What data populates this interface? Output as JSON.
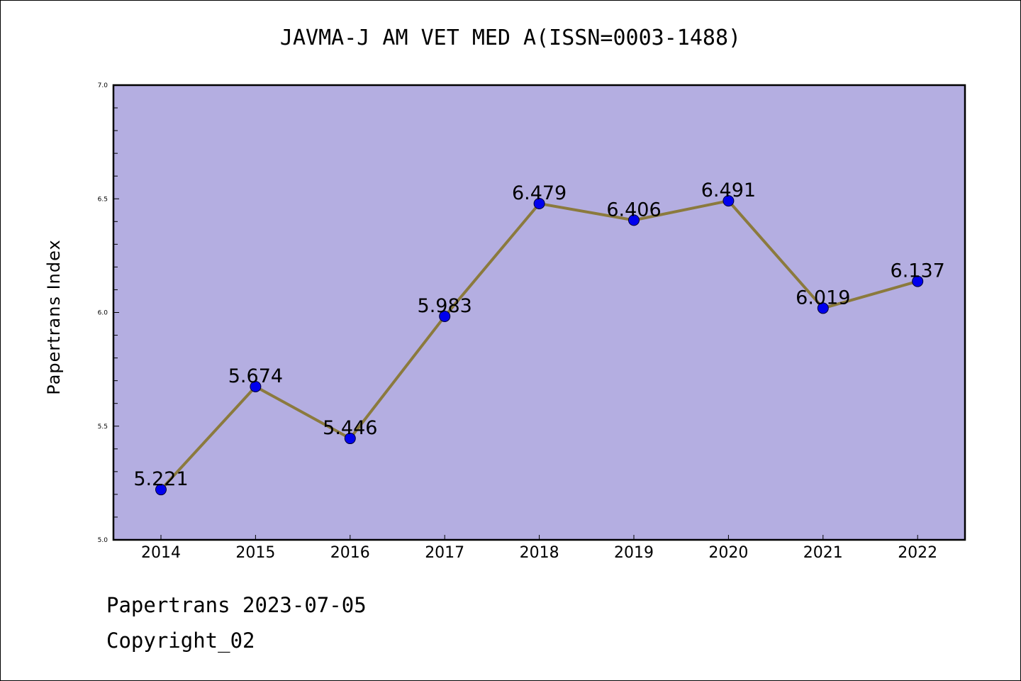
{
  "chart_data": {
    "type": "line",
    "title": "JAVMA-J AM VET MED A(ISSN=0003-1488)",
    "xlabel": "",
    "ylabel": "Papertrans Index",
    "categories": [
      "2014",
      "2015",
      "2016",
      "2017",
      "2018",
      "2019",
      "2020",
      "2021",
      "2022"
    ],
    "values": [
      5.221,
      5.674,
      5.446,
      5.983,
      6.479,
      6.406,
      6.491,
      6.019,
      6.137
    ],
    "data_labels": [
      "5.221",
      "5.674",
      "5.446",
      "5.983",
      "6.479",
      "6.406",
      "6.491",
      "6.019",
      "6.137"
    ],
    "ylim": [
      5.0,
      7.0
    ],
    "yticks": [
      "5.0",
      "5.5",
      "6.0",
      "6.5",
      "7.0"
    ],
    "grid": false,
    "legend": "none",
    "colors": {
      "plot_background": "#b4aee1",
      "line": "#8b7a3d",
      "marker": "#0000ee"
    }
  },
  "footer": {
    "date_line": "Papertrans 2023-07-05",
    "copyright": "Copyright_02"
  }
}
